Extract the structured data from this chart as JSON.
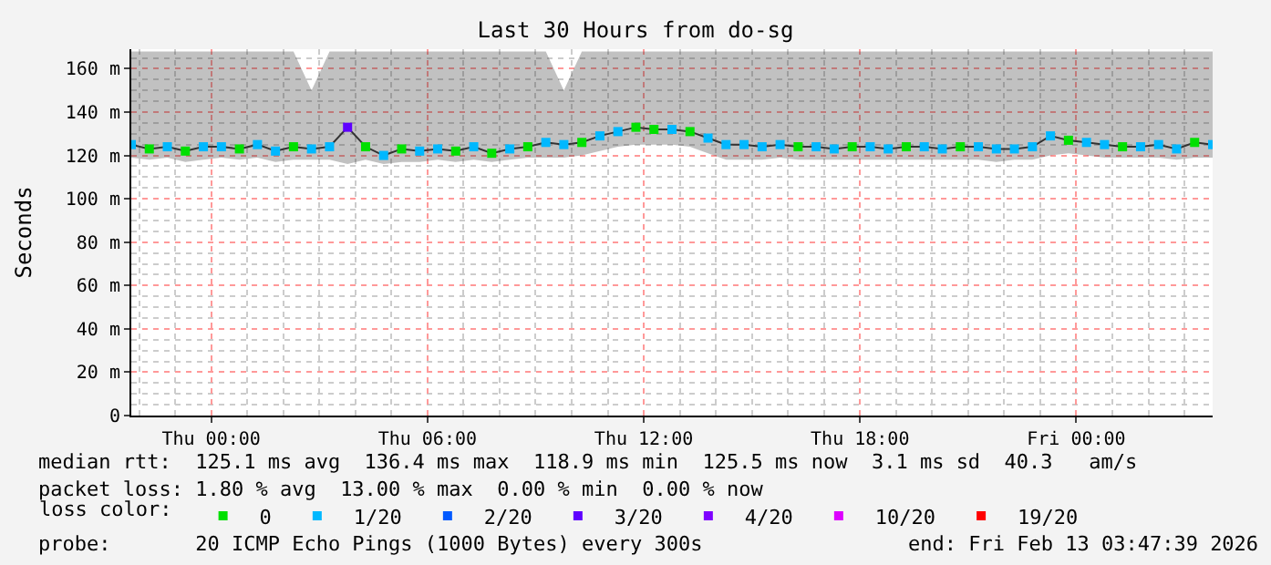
{
  "chart_data": {
    "type": "line",
    "title": "Last 30 Hours from do-sg",
    "ylabel": "Seconds",
    "legend_title": "loss color:",
    "x": [
      "2026-02-11T21:47",
      "2026-02-11T22:17",
      "2026-02-11T22:47",
      "2026-02-11T23:17",
      "2026-02-11T23:47",
      "2026-02-12T00:17",
      "2026-02-12T00:47",
      "2026-02-12T01:17",
      "2026-02-12T01:47",
      "2026-02-12T02:17",
      "2026-02-12T02:47",
      "2026-02-12T03:17",
      "2026-02-12T03:47",
      "2026-02-12T04:17",
      "2026-02-12T04:47",
      "2026-02-12T05:17",
      "2026-02-12T05:47",
      "2026-02-12T06:17",
      "2026-02-12T06:47",
      "2026-02-12T07:17",
      "2026-02-12T07:47",
      "2026-02-12T08:17",
      "2026-02-12T08:47",
      "2026-02-12T09:17",
      "2026-02-12T09:47",
      "2026-02-12T10:17",
      "2026-02-12T10:47",
      "2026-02-12T11:17",
      "2026-02-12T11:47",
      "2026-02-12T12:17",
      "2026-02-12T12:47",
      "2026-02-12T13:17",
      "2026-02-12T13:47",
      "2026-02-12T14:17",
      "2026-02-12T14:47",
      "2026-02-12T15:17",
      "2026-02-12T15:47",
      "2026-02-12T16:17",
      "2026-02-12T16:47",
      "2026-02-12T17:17",
      "2026-02-12T17:47",
      "2026-02-12T18:17",
      "2026-02-12T18:47",
      "2026-02-12T19:17",
      "2026-02-12T19:47",
      "2026-02-12T20:17",
      "2026-02-12T20:47",
      "2026-02-12T21:17",
      "2026-02-12T21:47",
      "2026-02-12T22:17",
      "2026-02-12T22:47",
      "2026-02-12T23:17",
      "2026-02-12T23:47",
      "2026-02-13T00:17",
      "2026-02-13T00:47",
      "2026-02-13T01:17",
      "2026-02-13T01:47",
      "2026-02-13T02:17",
      "2026-02-13T02:47",
      "2026-02-13T03:17",
      "2026-02-13T03:47"
    ],
    "series": [
      {
        "color": "#333333",
        "values": [
          125,
          123,
          124,
          122,
          124,
          124,
          123,
          125,
          122,
          124,
          123,
          124,
          133,
          124,
          120,
          123,
          122,
          123,
          122,
          124,
          121,
          123,
          124,
          126,
          125,
          126,
          129,
          131,
          133,
          132,
          132,
          131,
          128,
          125,
          125,
          124,
          125,
          124,
          124,
          123,
          124,
          124,
          123,
          124,
          124,
          123,
          124,
          124,
          123,
          123,
          124,
          129,
          127,
          126,
          125,
          124,
          124,
          125,
          123,
          126,
          125
        ],
        "lower": [
          119,
          118,
          119,
          117,
          118,
          119,
          118,
          119,
          117,
          118,
          118,
          118,
          116,
          118,
          116,
          117,
          117,
          118,
          117,
          118,
          117,
          118,
          119,
          119,
          119,
          120,
          122,
          124,
          125,
          125,
          125,
          124,
          121,
          118,
          118,
          118,
          119,
          118,
          118,
          118,
          118,
          118,
          118,
          118,
          118,
          118,
          118,
          118,
          117,
          118,
          118,
          120,
          121,
          120,
          119,
          119,
          119,
          119,
          118,
          119,
          119
        ],
        "upper": [
          168,
          168,
          168,
          168,
          168,
          168,
          168,
          168,
          168,
          168,
          150,
          168,
          168,
          168,
          168,
          168,
          168,
          168,
          168,
          168,
          168,
          168,
          168,
          168,
          150,
          168,
          168,
          168,
          168,
          168,
          168,
          168,
          168,
          168,
          168,
          168,
          168,
          168,
          168,
          168,
          168,
          168,
          168,
          168,
          168,
          168,
          168,
          168,
          168,
          168,
          168,
          168,
          168,
          168,
          168,
          168,
          168,
          168,
          168,
          168,
          168
        ]
      },
      {
        "type": "scatter",
        "name": "0",
        "marker": "square",
        "color": "#00e000",
        "values": [
          null,
          123,
          null,
          122,
          null,
          null,
          123,
          null,
          null,
          124,
          null,
          null,
          null,
          124,
          null,
          123,
          null,
          null,
          122,
          null,
          121,
          null,
          124,
          null,
          null,
          126,
          null,
          null,
          133,
          132,
          null,
          131,
          null,
          null,
          null,
          null,
          null,
          124,
          null,
          null,
          124,
          null,
          null,
          124,
          null,
          null,
          124,
          null,
          null,
          null,
          null,
          null,
          127,
          null,
          null,
          124,
          null,
          null,
          null,
          126,
          null
        ]
      },
      {
        "type": "scatter",
        "name": "1/20",
        "marker": "square",
        "color": "#00b8ff",
        "values": [
          125,
          null,
          124,
          null,
          124,
          124,
          null,
          125,
          122,
          null,
          123,
          124,
          null,
          null,
          120,
          null,
          122,
          123,
          null,
          124,
          null,
          123,
          null,
          126,
          125,
          null,
          129,
          131,
          null,
          null,
          132,
          null,
          128,
          125,
          125,
          124,
          125,
          null,
          124,
          123,
          null,
          124,
          123,
          null,
          124,
          123,
          null,
          124,
          123,
          123,
          124,
          129,
          null,
          126,
          125,
          null,
          124,
          125,
          123,
          null,
          125
        ]
      },
      {
        "type": "scatter",
        "name": "2/20",
        "marker": "square",
        "color": "#0059ff",
        "values": [
          null,
          null,
          null,
          null,
          null,
          null,
          null,
          null,
          null,
          null,
          null,
          null,
          null,
          null,
          null,
          null,
          null,
          null,
          null,
          null,
          null,
          null,
          null,
          null,
          null,
          null,
          null,
          null,
          null,
          null,
          null,
          null,
          null,
          null,
          null,
          null,
          null,
          null,
          null,
          null,
          null,
          null,
          null,
          null,
          null,
          null,
          null,
          null,
          null,
          null,
          null,
          null,
          null,
          null,
          null,
          null,
          null,
          null,
          null,
          null,
          null
        ]
      },
      {
        "type": "scatter",
        "name": "3/20",
        "marker": "square",
        "color": "#5e00ff",
        "values": [
          null,
          null,
          null,
          null,
          null,
          null,
          null,
          null,
          null,
          null,
          null,
          null,
          133,
          null,
          null,
          null,
          null,
          null,
          null,
          null,
          null,
          null,
          null,
          null,
          null,
          null,
          null,
          null,
          null,
          null,
          null,
          null,
          null,
          null,
          null,
          null,
          null,
          null,
          null,
          null,
          null,
          null,
          null,
          null,
          null,
          null,
          null,
          null,
          null,
          null,
          null,
          null,
          null,
          null,
          null,
          null,
          null,
          null,
          null,
          null,
          null
        ]
      },
      {
        "type": "scatter",
        "name": "4/20",
        "marker": "square",
        "color": "#7e00ff",
        "values": [
          null,
          null,
          null,
          null,
          null,
          null,
          null,
          null,
          null,
          null,
          null,
          null,
          null,
          null,
          null,
          null,
          null,
          null,
          null,
          null,
          null,
          null,
          null,
          null,
          null,
          null,
          null,
          null,
          null,
          null,
          null,
          null,
          null,
          null,
          null,
          null,
          null,
          null,
          null,
          null,
          null,
          null,
          null,
          null,
          null,
          null,
          null,
          null,
          null,
          null,
          null,
          null,
          null,
          null,
          null,
          null,
          null,
          null,
          null,
          null,
          null
        ]
      },
      {
        "type": "scatter",
        "name": "10/20",
        "marker": "square",
        "color": "#dd00ff",
        "values": [
          null,
          null,
          null,
          null,
          null,
          null,
          null,
          null,
          null,
          null,
          null,
          null,
          null,
          null,
          null,
          null,
          null,
          null,
          null,
          null,
          null,
          null,
          null,
          null,
          null,
          null,
          null,
          null,
          null,
          null,
          null,
          null,
          null,
          null,
          null,
          null,
          null,
          null,
          null,
          null,
          null,
          null,
          null,
          null,
          null,
          null,
          null,
          null,
          null,
          null,
          null,
          null,
          null,
          null,
          null,
          null,
          null,
          null,
          null,
          null,
          null
        ]
      },
      {
        "type": "scatter",
        "name": "19/20",
        "marker": "square",
        "color": "#ff0000",
        "values": [
          null,
          null,
          null,
          null,
          null,
          null,
          null,
          null,
          null,
          null,
          null,
          null,
          null,
          null,
          null,
          null,
          null,
          null,
          null,
          null,
          null,
          null,
          null,
          null,
          null,
          null,
          null,
          null,
          null,
          null,
          null,
          null,
          null,
          null,
          null,
          null,
          null,
          null,
          null,
          null,
          null,
          null,
          null,
          null,
          null,
          null,
          null,
          null,
          null,
          null,
          null,
          null,
          null,
          null,
          null,
          null,
          null,
          null,
          null,
          null,
          null
        ]
      }
    ],
    "xlim": [
      "2026-02-11T21:47",
      "2026-02-13T03:47"
    ],
    "xticks": [
      {
        "value": "2026-02-12T00:00",
        "label": "Thu 00:00"
      },
      {
        "value": "2026-02-12T06:00",
        "label": "Thu 06:00"
      },
      {
        "value": "2026-02-12T12:00",
        "label": "Thu 12:00"
      },
      {
        "value": "2026-02-12T18:00",
        "label": "Thu 18:00"
      },
      {
        "value": "2026-02-13T00:00",
        "label": "Fri 00:00"
      }
    ],
    "ylim": [
      0,
      169
    ],
    "yticks": [
      0,
      {
        "value": 20,
        "label": "20 m"
      },
      {
        "value": 40,
        "label": "40 m"
      },
      {
        "value": 60,
        "label": "60 m"
      },
      {
        "value": 80,
        "label": "80 m"
      },
      {
        "value": 100,
        "label": "100 m"
      },
      {
        "value": 120,
        "label": "120 m"
      },
      {
        "value": 140,
        "label": "140 m"
      },
      {
        "value": 160,
        "label": "160 m"
      }
    ],
    "grid": true,
    "legend": "bottom",
    "annotations": [
      "median rtt:  125.1 ms avg  136.4 ms max  118.9 ms min  125.5 ms now  3.1 ms sd  40.3   am/s",
      "packet loss: 1.80 % avg  13.00 % max  0.00 % min  0.00 % now",
      "probe:       20 ICMP Echo Pings (1000 Bytes) every 300s",
      "end: Fri Feb 13 03:47:39 2026"
    ]
  }
}
